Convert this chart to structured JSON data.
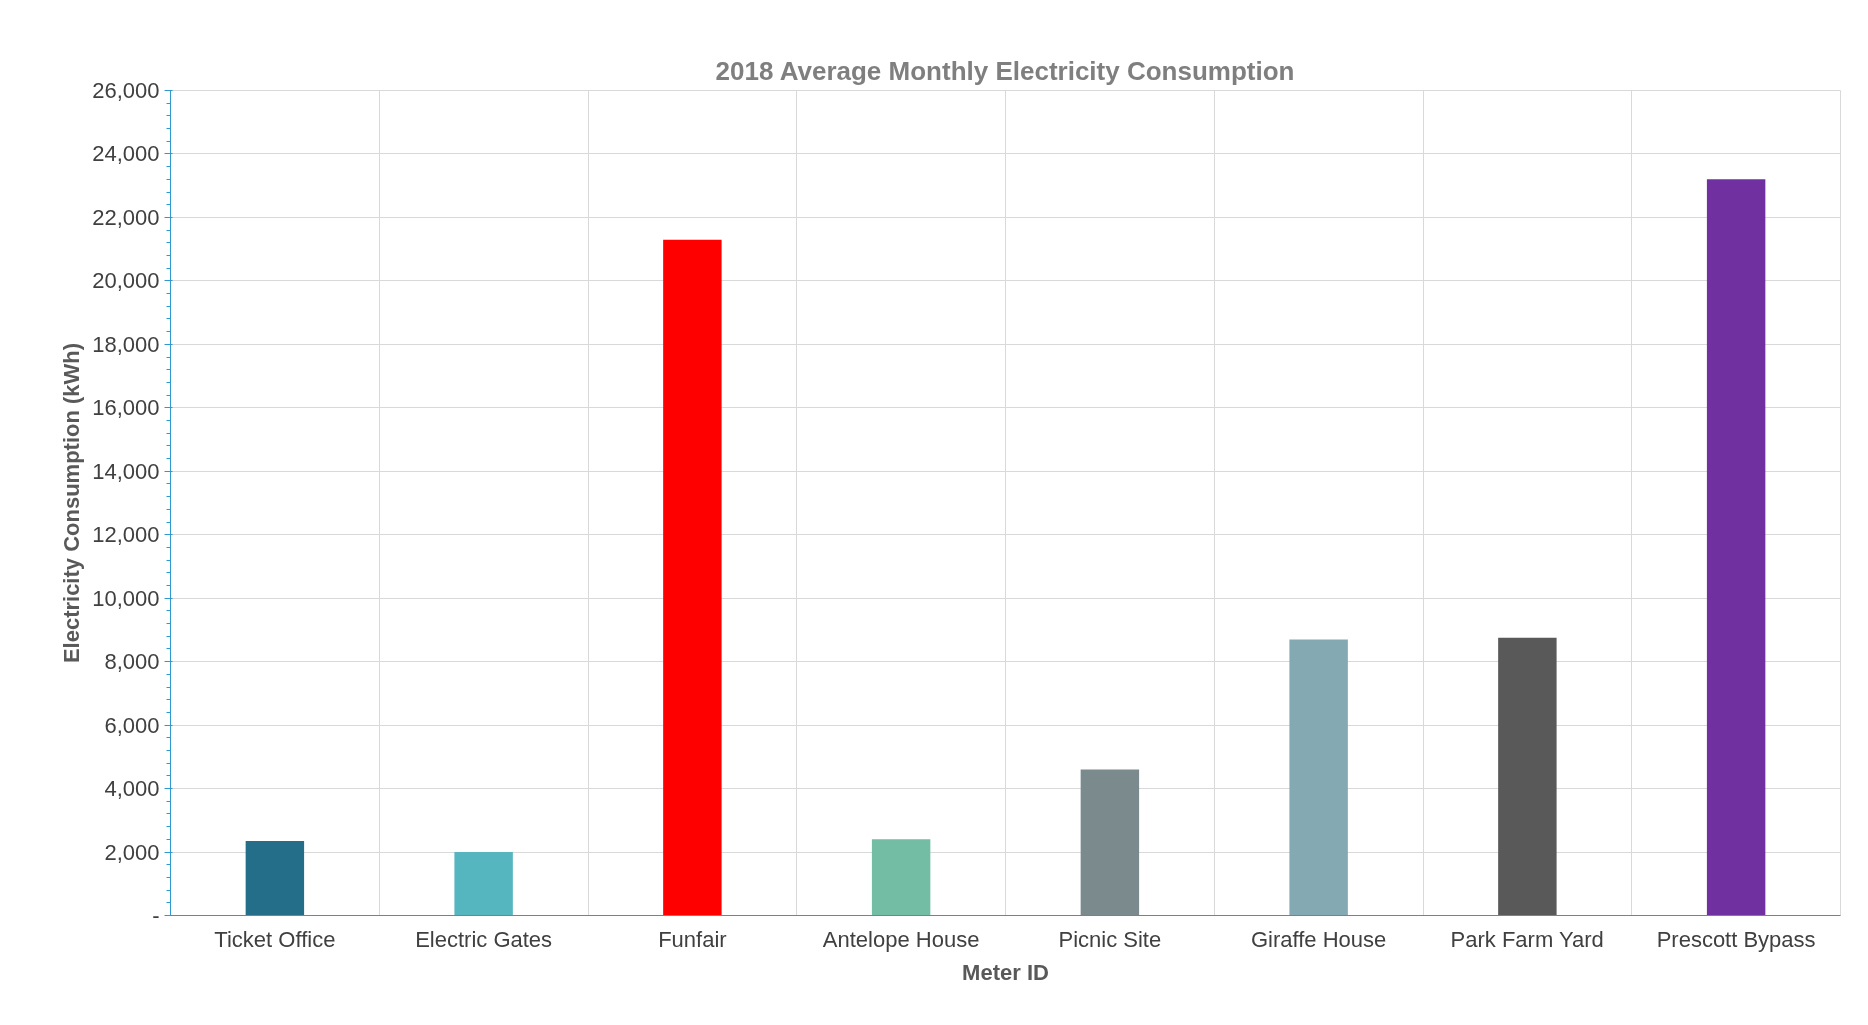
{
  "chart_data": {
    "type": "bar",
    "title": "2018 Average Monthly Electricity Consumption",
    "xlabel": "Meter ID",
    "ylabel": "Electricity Consumption (kWh)",
    "categories": [
      "Ticket Office",
      "Electric Gates",
      "Funfair",
      "Antelope House",
      "Picnic Site",
      "Giraffe House",
      "Park Farm Yard",
      "Prescott Bypass"
    ],
    "values": [
      2350,
      2000,
      21300,
      2400,
      4600,
      8700,
      8750,
      23200
    ],
    "colors": [
      "#246e8a",
      "#56b6c0",
      "#ff0000",
      "#72bda4",
      "#7a8a8d",
      "#84a9b3",
      "#595959",
      "#7030a0"
    ],
    "ylim": [
      0,
      26000
    ],
    "yticks": [
      {
        "value": 0,
        "label": "-"
      },
      {
        "value": 2000,
        "label": "2,000"
      },
      {
        "value": 4000,
        "label": "4,000"
      },
      {
        "value": 6000,
        "label": "6,000"
      },
      {
        "value": 8000,
        "label": "8,000"
      },
      {
        "value": 10000,
        "label": "10,000"
      },
      {
        "value": 12000,
        "label": "12,000"
      },
      {
        "value": 14000,
        "label": "14,000"
      },
      {
        "value": 16000,
        "label": "16,000"
      },
      {
        "value": 18000,
        "label": "18,000"
      },
      {
        "value": 20000,
        "label": "20,000"
      },
      {
        "value": 22000,
        "label": "22,000"
      },
      {
        "value": 24000,
        "label": "24,000"
      },
      {
        "value": 26000,
        "label": "26,000"
      }
    ],
    "grid": true
  }
}
